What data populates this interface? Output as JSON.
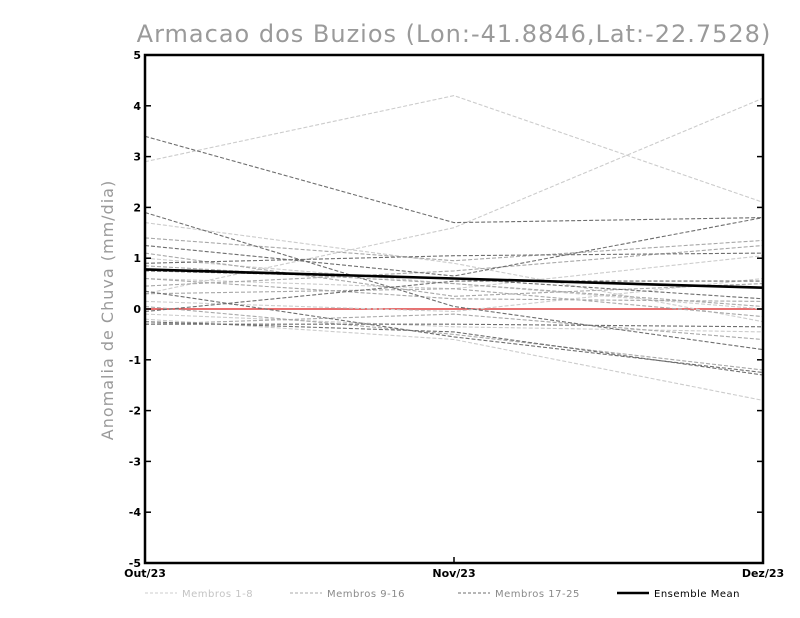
{
  "chart_data": {
    "type": "line",
    "title": "Armacao dos Buzios (Lon:-41.8846,Lat:-22.7528)",
    "ylabel": "Anomalia de Chuva (mm/dia)",
    "xlabel": "",
    "categories": [
      "Out/23",
      "Nov/23",
      "Dez/23"
    ],
    "ylim": [
      -5,
      5
    ],
    "yticks": [
      -5,
      -4,
      -3,
      -2,
      -1,
      0,
      1,
      2,
      3,
      4,
      5
    ],
    "ytick_labels": [
      "-5",
      "-4",
      "-3",
      "-2",
      "-1",
      "0",
      "1",
      "2",
      "3",
      "4",
      "5"
    ],
    "grid": false,
    "legend_position": "bottom",
    "groups": [
      {
        "name": "Membros 1-8",
        "color": "#cccccc",
        "style": "dashed",
        "series": [
          [
            2.9,
            4.2,
            2.1
          ],
          [
            0.3,
            1.6,
            4.15
          ],
          [
            1.7,
            0.9,
            -0.25
          ],
          [
            -0.2,
            -0.6,
            -1.8
          ],
          [
            0.6,
            0.4,
            1.05
          ],
          [
            0.15,
            -0.05,
            0.6
          ],
          [
            1.0,
            0.5,
            0.0
          ],
          [
            -0.1,
            -0.35,
            -0.45
          ]
        ]
      },
      {
        "name": "Membros 9-16",
        "color": "#a8a8a8",
        "style": "dashed",
        "series": [
          [
            1.4,
            0.95,
            1.35
          ],
          [
            0.45,
            0.75,
            1.25
          ],
          [
            0.85,
            0.5,
            0.05
          ],
          [
            -0.3,
            -0.1,
            -0.6
          ],
          [
            0.6,
            0.2,
            0.15
          ],
          [
            0.05,
            -0.5,
            -1.2
          ],
          [
            1.1,
            0.25,
            0.5
          ],
          [
            0.3,
            0.4,
            -0.15
          ]
        ]
      },
      {
        "name": "Membros 17-25",
        "color": "#6e6e6e",
        "style": "dashed",
        "series": [
          [
            3.4,
            1.7,
            1.8
          ],
          [
            1.9,
            0.05,
            -0.8
          ],
          [
            1.25,
            0.65,
            1.8
          ],
          [
            0.9,
            1.05,
            1.1
          ],
          [
            0.75,
            0.6,
            0.2
          ],
          [
            -0.25,
            -0.45,
            -1.3
          ],
          [
            0.35,
            -0.55,
            -1.25
          ],
          [
            -0.05,
            0.55,
            0.55
          ],
          [
            -0.3,
            -0.3,
            -0.35
          ]
        ]
      },
      {
        "name": "Ensemble Mean",
        "color": "#000000",
        "style": "solid",
        "series": [
          [
            0.78,
            0.6,
            0.42
          ]
        ]
      }
    ],
    "reference_line": {
      "y": 0,
      "color": "#e04040"
    }
  }
}
